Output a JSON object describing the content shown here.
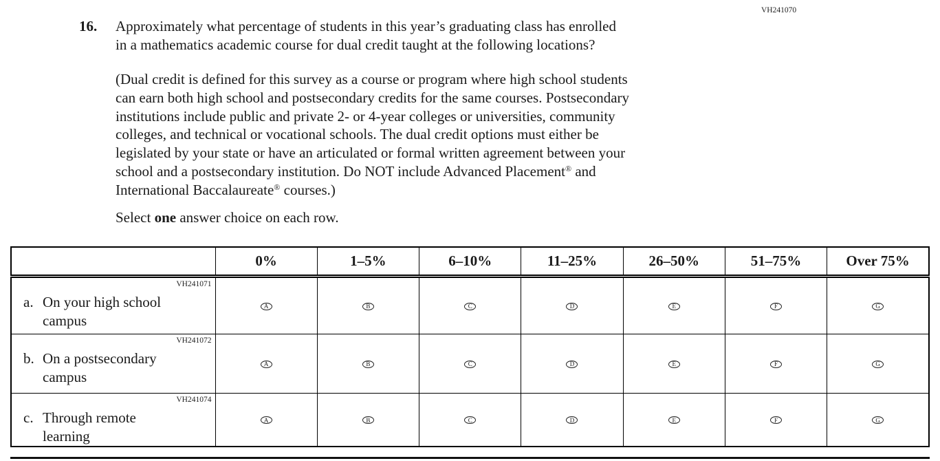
{
  "form_code": "VH241070",
  "question": {
    "number": "16.",
    "text": "Approximately what percentage of students in this year’s graduating class has enrolled\nin a mathematics academic course for dual credit taught at the following locations?",
    "definition_part1": "(Dual credit is defined for this survey as a course or program where high school students\ncan earn both high school and postsecondary credits for the same courses. Postsecondary\ninstitutions include public and private 2- or 4-year colleges or universities, community\ncolleges, and technical or vocational schools. The dual credit options must either be\nlegislated by your state or have an articulated or formal written agreement between your\nschool and a postsecondary institution. Do NOT include Advanced Placement",
    "reg_symbol": "®",
    "definition_part2": " and\nInternational Baccalaureate",
    "definition_part3": " courses.)",
    "instruction_pre": "Select ",
    "instruction_bold": "one",
    "instruction_post": " answer choice on each row."
  },
  "table": {
    "column_headers": [
      "0%",
      "1–5%",
      "6–10%",
      "11–25%",
      "26–50%",
      "51–75%",
      "Over 75%"
    ],
    "choice_letters": [
      "A",
      "B",
      "C",
      "D",
      "E",
      "F",
      "G"
    ],
    "rows": [
      {
        "code": "VH241071",
        "prefix": "a.",
        "label": "On your high school\ncampus"
      },
      {
        "code": "VH241072",
        "prefix": "b.",
        "label": "On a postsecondary\ncampus"
      },
      {
        "code": "VH241074",
        "prefix": "c.",
        "label": "Through remote\nlearning"
      }
    ]
  }
}
